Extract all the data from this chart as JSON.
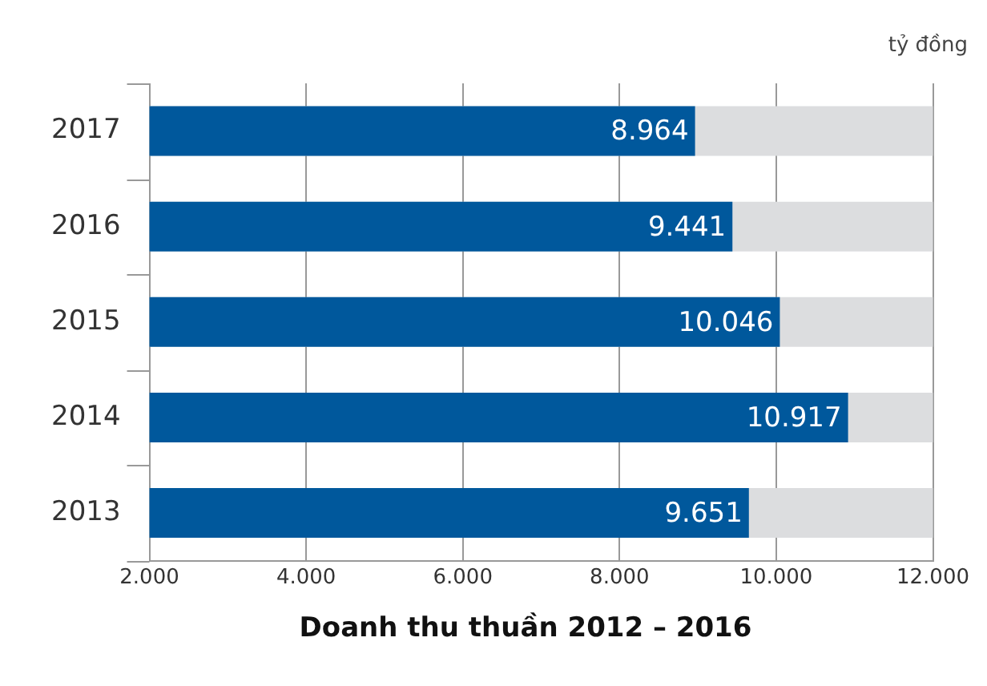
{
  "chart_data": {
    "type": "bar",
    "orientation": "horizontal",
    "title": "Doanh thu thuần 2012 – 2016",
    "xlabel": "tỷ đồng",
    "categories": [
      "2017",
      "2016",
      "2015",
      "2014",
      "2013"
    ],
    "series": [
      {
        "color": "#00589c",
        "values": [
          8964,
          9441,
          10046,
          10917,
          9651
        ],
        "value_labels": [
          "8.964",
          "9.441",
          "10.046",
          "10.917",
          "9.651"
        ]
      }
    ],
    "xlim": [
      2000,
      12000
    ],
    "xticks": [
      {
        "value": 2000,
        "label": "2.000"
      },
      {
        "value": 4000,
        "label": "4.000"
      },
      {
        "value": 6000,
        "label": "6.000"
      },
      {
        "value": 8000,
        "label": "8.000"
      },
      {
        "value": 10000,
        "label": "10.000"
      },
      {
        "value": 12000,
        "label": "12.000"
      }
    ],
    "grid": "x",
    "legend": false
  }
}
